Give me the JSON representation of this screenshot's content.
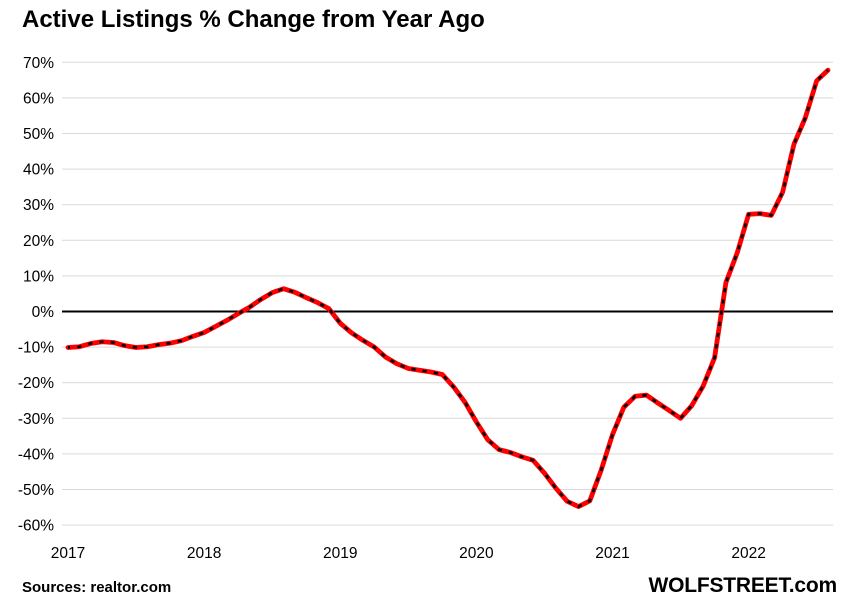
{
  "title": "Active Listings % Change from Year Ago",
  "footer": {
    "sources": "Sources: realtor.com",
    "brand": "WOLFSTREET.com"
  },
  "chart_data": {
    "type": "line",
    "title": "Active Listings % Change from Year Ago",
    "series_name": "Active listings, % change year-over-year",
    "x": [
      "2017-07",
      "2017-08",
      "2017-09",
      "2017-10",
      "2017-11",
      "2017-12",
      "2018-01",
      "2018-02",
      "2018-03",
      "2018-04",
      "2018-05",
      "2018-06",
      "2018-07",
      "2018-08",
      "2018-09",
      "2018-10",
      "2018-11",
      "2018-12",
      "2019-01",
      "2019-02",
      "2019-03",
      "2019-04",
      "2019-05",
      "2019-06",
      "2019-07",
      "2019-08",
      "2019-09",
      "2019-10",
      "2019-11",
      "2019-12",
      "2020-01",
      "2020-02",
      "2020-03",
      "2020-04",
      "2020-05",
      "2020-06",
      "2020-07",
      "2020-08",
      "2020-09",
      "2020-10",
      "2020-11",
      "2020-12",
      "2021-01",
      "2021-02",
      "2021-03",
      "2021-04",
      "2021-05",
      "2021-06",
      "2021-07",
      "2021-08",
      "2021-09",
      "2021-10",
      "2021-11",
      "2021-12",
      "2022-01",
      "2022-02",
      "2022-03",
      "2022-04",
      "2022-05",
      "2022-06",
      "2022-07",
      "2022-08",
      "2022-09",
      "2022-10",
      "2022-11",
      "2022-12",
      "2023-01",
      "2023-02"
    ],
    "values": [
      -10.1,
      -9.9,
      -9.0,
      -8.5,
      -8.7,
      -9.6,
      -10.1,
      -9.9,
      -9.3,
      -8.9,
      -8.2,
      -7.0,
      -5.9,
      -4.2,
      -2.5,
      -0.6,
      1.2,
      3.4,
      5.3,
      6.4,
      5.4,
      3.9,
      2.5,
      0.8,
      -3.3,
      -6.0,
      -8.1,
      -10.0,
      -12.8,
      -14.7,
      -16.0,
      -16.5,
      -17.0,
      -17.7,
      -21.2,
      -25.5,
      -31.0,
      -36.0,
      -38.8,
      -39.6,
      -40.8,
      -41.8,
      -45.4,
      -49.6,
      -53.3,
      -54.8,
      -53.2,
      -44.6,
      -34.6,
      -26.9,
      -23.8,
      -23.5,
      -25.7,
      -27.8,
      -30.0,
      -26.4,
      -20.9,
      -13.0,
      8.1,
      16.5,
      27.3,
      27.5,
      27.0,
      33.5,
      47.0,
      54.4,
      64.8,
      67.8
    ],
    "xlabel": "",
    "ylabel": "",
    "ylim": [
      -60,
      70
    ],
    "ytick_values": [
      70,
      60,
      50,
      40,
      30,
      20,
      10,
      0,
      -10,
      -20,
      -30,
      -40,
      -50,
      -60
    ],
    "ytick_labels": [
      "70%",
      "60%",
      "50%",
      "40%",
      "30%",
      "20%",
      "10%",
      "0%",
      "-10%",
      "-20%",
      "-30%",
      "-40%",
      "-50%",
      "-60%"
    ],
    "xtick_labels": [
      "2017",
      "2018",
      "2019",
      "2020",
      "2021",
      "2022"
    ],
    "xtick_month_index": [
      0,
      12,
      24,
      36,
      48,
      60
    ],
    "grid": "horizontal-only",
    "legend_position": "none",
    "zero_line": true,
    "colors": {
      "line": "#ff0000",
      "marker_dash": "#000000",
      "zero_line": "#000000",
      "grid": "#d9d9d9",
      "background": "#ffffff",
      "text": "#000000"
    }
  }
}
